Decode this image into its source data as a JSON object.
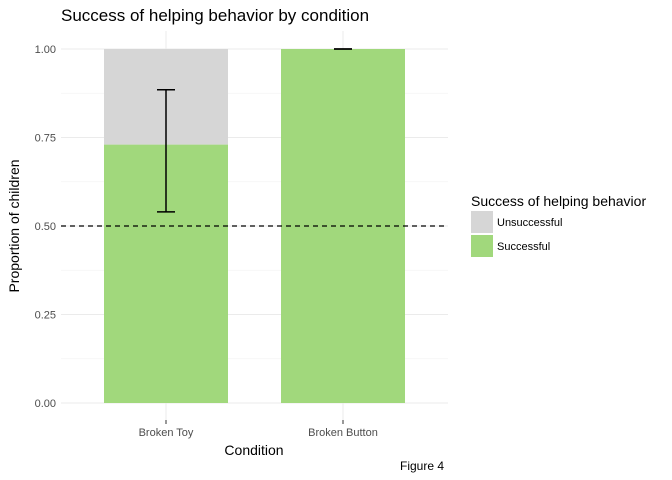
{
  "chart_data": {
    "type": "bar",
    "stacked": true,
    "title": "Success of helping behavior by condition",
    "xlabel": "Condition",
    "ylabel": "Proportion of children",
    "caption": "Figure 4",
    "ylim": [
      0,
      1
    ],
    "yticks": [
      "0.00",
      "0.25",
      "0.50",
      "0.75",
      "1.00"
    ],
    "ytick_values": [
      0,
      0.25,
      0.5,
      0.75,
      1.0
    ],
    "categories": [
      "Broken Toy",
      "Broken Button"
    ],
    "series": [
      {
        "name": "Successful",
        "values": [
          0.73,
          1.0
        ],
        "color": "#a1d87c"
      },
      {
        "name": "Unsuccessful",
        "values": [
          0.27,
          0.0
        ],
        "color": "#d6d6d6"
      }
    ],
    "error_bars": [
      {
        "category": "Broken Toy",
        "lower": 0.54,
        "upper": 0.885
      },
      {
        "category": "Broken Button",
        "lower": 1.0,
        "upper": 1.0
      }
    ],
    "reference_line": {
      "y": 0.5,
      "style": "dashed"
    },
    "legend": {
      "title": "Success of helping behavior",
      "position": "right",
      "items": [
        "Unsuccessful",
        "Successful"
      ]
    },
    "grid": true
  }
}
